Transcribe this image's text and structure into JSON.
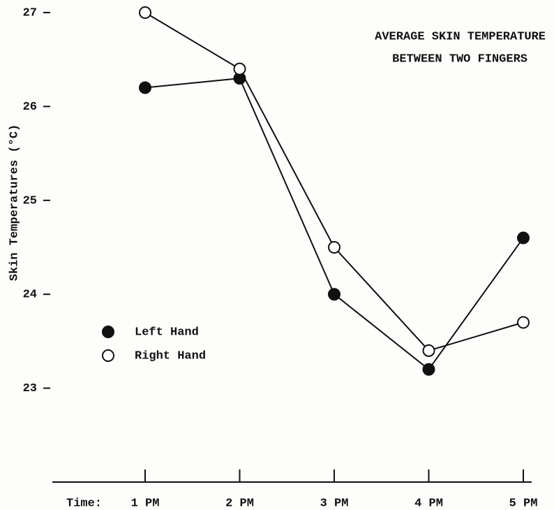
{
  "chart_data": {
    "type": "line",
    "title": [
      "AVERAGE SKIN TEMPERATURE",
      "BETWEEN TWO FINGERS"
    ],
    "y_label": "Skin Temperatures (°C)",
    "x_label": "Time:",
    "categories": [
      "1 PM",
      "2 PM",
      "3 PM",
      "4 PM",
      "5 PM"
    ],
    "series": [
      {
        "name": "Left Hand",
        "color": "#111111",
        "marker": "filled",
        "values": [
          26.2,
          26.3,
          24.0,
          23.2,
          24.6
        ]
      },
      {
        "name": "Right Hand",
        "color": "#111111",
        "marker": "open",
        "values": [
          27.0,
          26.4,
          24.5,
          23.4,
          23.7
        ]
      }
    ],
    "ylim": [
      22,
      27
    ],
    "yticks": [
      23,
      24,
      25,
      26,
      27
    ],
    "legend": "lower left"
  }
}
